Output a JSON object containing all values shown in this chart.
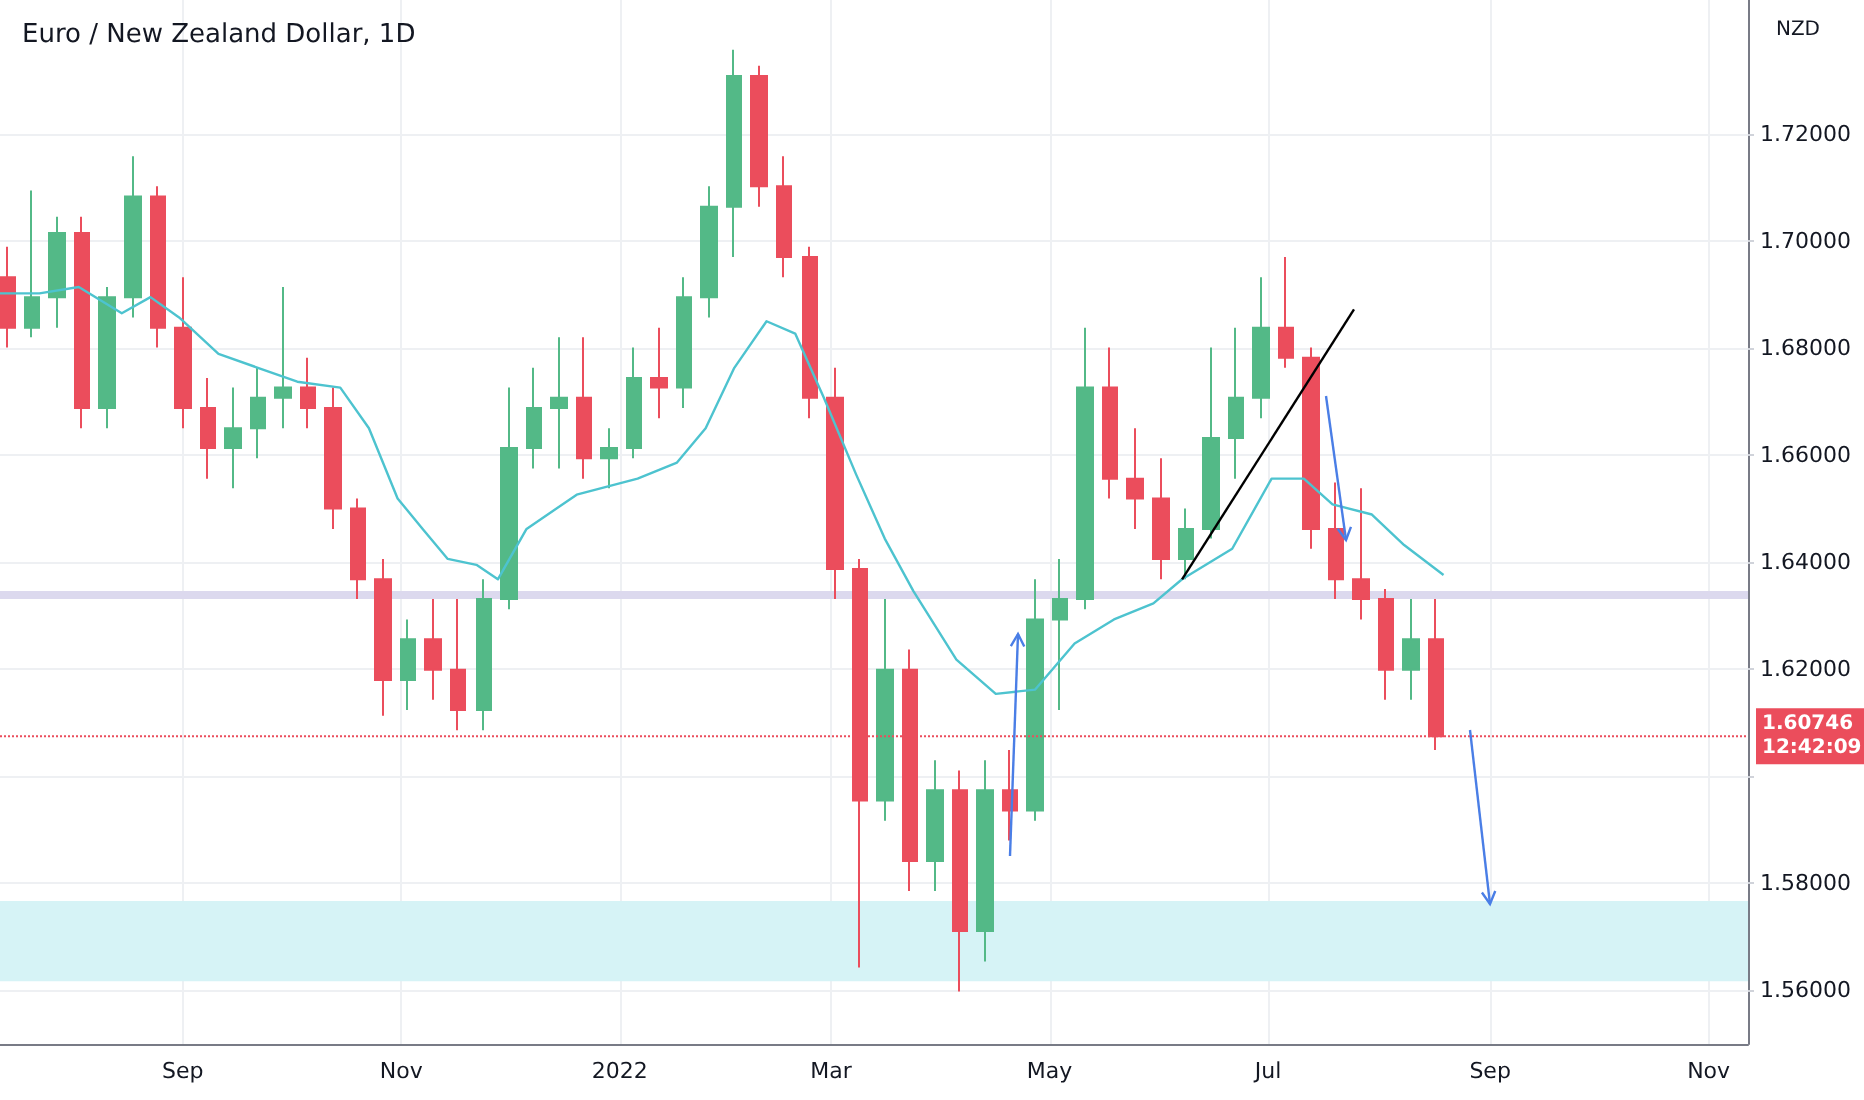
{
  "chart_data": {
    "type": "candlestick",
    "title": "Euro / New Zealand Dollar, 1D",
    "ylabel": "NZD",
    "colors": [
      "#eb4d5c",
      "#53b987",
      "#53b987",
      "#eb4d5c",
      "#53b987",
      "#53b987",
      "#eb4d5c",
      "#eb4d5c",
      "#eb4d5c",
      "#53b987",
      "#53b987",
      "#53b987",
      "#eb4d5c",
      "#eb4d5c",
      "#eb4d5c",
      "#eb4d5c",
      "#53b987",
      "#eb4d5c",
      "#eb4d5c",
      "#53b987",
      "#53b987",
      "#53b987",
      "#53b987",
      "#eb4d5c",
      "#53b987",
      "#53b987",
      "#eb4d5c",
      "#53b987",
      "#53b987",
      "#53b987",
      "#eb4d5c",
      "#eb4d5c",
      "#eb4d5c",
      "#eb4d5c",
      "#eb4d5c",
      "#53b987",
      "#eb4d5c",
      "#53b987",
      "#eb4d5c",
      "#53b987",
      "#eb4d5c",
      "#53b987",
      "#53b987",
      "#53b987",
      "#eb4d5c",
      "#eb4d5c",
      "#eb4d5c",
      "#53b987",
      "#53b987",
      "#53b987",
      "#53b987",
      "#eb4d5c",
      "#eb4d5c",
      "#eb4d5c",
      "#eb4d5c",
      "#eb4d5c",
      "#53b987",
      "#eb4d5c"
    ],
    "x": [
      "2021-07-14",
      "2021-07-21",
      "2021-07-28",
      "2021-08-04",
      "2021-08-11",
      "2021-08-18",
      "2021-08-25",
      "2021-09-01",
      "2021-09-08",
      "2021-09-15",
      "2021-09-22",
      "2021-09-29",
      "2021-10-06",
      "2021-10-13",
      "2021-10-20",
      "2021-10-27",
      "2021-11-03",
      "2021-11-10",
      "2021-11-17",
      "2021-11-24",
      "2021-12-01",
      "2021-12-08",
      "2021-12-15",
      "2021-12-22",
      "2021-12-29",
      "2022-01-05",
      "2022-01-12",
      "2022-01-19",
      "2022-01-26",
      "2022-02-02",
      "2022-02-09",
      "2022-02-16",
      "2022-02-23",
      "2022-03-02",
      "2022-03-09",
      "2022-03-16",
      "2022-03-23",
      "2022-03-30",
      "2022-04-06",
      "2022-04-13",
      "2022-04-20",
      "2022-04-27",
      "2022-05-04",
      "2022-05-11",
      "2022-05-18",
      "2022-05-25",
      "2022-06-01",
      "2022-06-08",
      "2022-06-15",
      "2022-06-22",
      "2022-06-29",
      "2022-07-06",
      "2022-07-13",
      "2022-07-20",
      "2022-07-27",
      "2022-08-03",
      "2022-08-10",
      "2022-08-17"
    ],
    "ohlc": [
      [
        1.6932,
        1.6989,
        1.6801,
        1.6838
      ],
      [
        1.6838,
        1.7094,
        1.682,
        1.6895
      ],
      [
        1.6895,
        1.7045,
        1.6838,
        1.7015
      ],
      [
        1.7015,
        1.7045,
        1.665,
        1.6688
      ],
      [
        1.6688,
        1.6914,
        1.665,
        1.6895
      ],
      [
        1.6895,
        1.7158,
        1.6857,
        1.7083
      ],
      [
        1.7083,
        1.7102,
        1.6801,
        1.6838
      ],
      [
        1.6838,
        1.6932,
        1.665,
        1.6688
      ],
      [
        1.6688,
        1.6744,
        1.6556,
        1.6613
      ],
      [
        1.6613,
        1.6726,
        1.6538,
        1.665
      ],
      [
        1.665,
        1.6763,
        1.6594,
        1.6707
      ],
      [
        1.6707,
        1.6914,
        1.665,
        1.6726
      ],
      [
        1.6726,
        1.6782,
        1.665,
        1.6688
      ],
      [
        1.6688,
        1.6726,
        1.6462,
        1.65
      ],
      [
        1.65,
        1.6519,
        1.6331,
        1.6368
      ],
      [
        1.6368,
        1.6406,
        1.6113,
        1.618
      ],
      [
        1.618,
        1.6293,
        1.6124,
        1.6256
      ],
      [
        1.6256,
        1.6331,
        1.6143,
        1.6199
      ],
      [
        1.6199,
        1.6331,
        1.6086,
        1.6124
      ],
      [
        1.6124,
        1.6368,
        1.6086,
        1.6331
      ],
      [
        1.6331,
        1.6726,
        1.6312,
        1.6613
      ],
      [
        1.6613,
        1.6763,
        1.6575,
        1.6688
      ],
      [
        1.6688,
        1.682,
        1.6575,
        1.6707
      ],
      [
        1.6707,
        1.682,
        1.6556,
        1.6594
      ],
      [
        1.6594,
        1.665,
        1.6538,
        1.6613
      ],
      [
        1.6613,
        1.6801,
        1.6594,
        1.6744
      ],
      [
        1.6744,
        1.6838,
        1.6669,
        1.6726
      ],
      [
        1.6726,
        1.6932,
        1.6688,
        1.6895
      ],
      [
        1.6895,
        1.7102,
        1.6857,
        1.7064
      ],
      [
        1.7064,
        1.7357,
        1.697,
        1.7308
      ],
      [
        1.7308,
        1.7327,
        1.7064,
        1.7102
      ],
      [
        1.7102,
        1.7158,
        1.6932,
        1.697
      ],
      [
        1.697,
        1.6989,
        1.6669,
        1.6707
      ],
      [
        1.6707,
        1.6763,
        1.6331,
        1.6387
      ],
      [
        1.6387,
        1.6406,
        1.5643,
        1.5955
      ],
      [
        1.5955,
        1.6331,
        1.5917,
        1.6199
      ],
      [
        1.6199,
        1.6237,
        1.5786,
        1.5842
      ],
      [
        1.5842,
        1.603,
        1.5786,
        1.5974
      ],
      [
        1.5974,
        1.6011,
        1.5598,
        1.5711
      ],
      [
        1.5711,
        1.603,
        1.5654,
        1.5974
      ],
      [
        1.5974,
        1.6049,
        1.588,
        1.5936
      ],
      [
        1.5936,
        1.6368,
        1.5917,
        1.6293
      ],
      [
        1.6293,
        1.6406,
        1.6124,
        1.6331
      ],
      [
        1.6331,
        1.6838,
        1.6312,
        1.6726
      ],
      [
        1.6726,
        1.6801,
        1.6519,
        1.6556
      ],
      [
        1.6556,
        1.665,
        1.6462,
        1.6519
      ],
      [
        1.6519,
        1.6594,
        1.6368,
        1.6406
      ],
      [
        1.6406,
        1.65,
        1.6368,
        1.6462
      ],
      [
        1.6462,
        1.6801,
        1.6444,
        1.6632
      ],
      [
        1.6632,
        1.6838,
        1.6556,
        1.6707
      ],
      [
        1.6707,
        1.6932,
        1.6669,
        1.6838
      ],
      [
        1.6838,
        1.697,
        1.6763,
        1.6782
      ],
      [
        1.6782,
        1.6801,
        1.6425,
        1.6462
      ],
      [
        1.6462,
        1.6549,
        1.6331,
        1.6368
      ],
      [
        1.6368,
        1.6538,
        1.6293,
        1.6331
      ],
      [
        1.6331,
        1.635,
        1.6143,
        1.6199
      ],
      [
        1.6199,
        1.6331,
        1.6143,
        1.6256
      ],
      [
        1.6256,
        1.6331,
        1.6049,
        1.6075
      ]
    ],
    "series": [
      {
        "type": "line",
        "color": "#4dc3cf",
        "x": [
          "2021-07-12",
          "2021-07-23",
          "2021-08-03",
          "2021-08-15",
          "2021-08-23",
          "2021-08-31",
          "2021-09-11",
          "2021-09-22",
          "2021-10-03",
          "2021-10-15",
          "2021-10-23",
          "2021-10-31",
          "2021-11-07",
          "2021-11-14",
          "2021-11-22",
          "2021-11-28",
          "2021-12-06",
          "2021-12-20",
          "2022-01-06",
          "2022-01-17",
          "2022-01-25",
          "2022-02-02",
          "2022-02-11",
          "2022-02-19",
          "2022-02-27",
          "2022-03-08",
          "2022-03-16",
          "2022-03-24",
          "2022-04-05",
          "2022-04-16",
          "2022-04-27",
          "2022-05-08",
          "2022-05-19",
          "2022-05-30",
          "2022-06-07",
          "2022-06-21",
          "2022-07-02",
          "2022-07-11",
          "2022-07-19",
          "2022-07-30",
          "2022-08-08",
          "2022-08-19"
        ],
        "values": [
          1.6902,
          1.6902,
          1.6914,
          1.6865,
          1.6895,
          1.6857,
          1.6789,
          1.6763,
          1.6737,
          1.6726,
          1.665,
          1.6519,
          1.6462,
          1.6406,
          1.6395,
          1.6368,
          1.6462,
          1.6526,
          1.6556,
          1.6586,
          1.665,
          1.6763,
          1.685,
          1.6827,
          1.6707,
          1.6564,
          1.6444,
          1.6346,
          1.6218,
          1.6154,
          1.6162,
          1.6248,
          1.6293,
          1.6323,
          1.6368,
          1.6425,
          1.6556,
          1.6556,
          1.6508,
          1.6489,
          1.6432,
          1.6376
        ]
      },
      {
        "type": "line",
        "color": "#000000",
        "x": [
          "2022-06-07",
          "2022-07-25"
        ],
        "values": [
          1.6368,
          1.6872
        ]
      }
    ],
    "ref_lines": [
      {
        "axis": "y",
        "value": 1.60746,
        "label": "1.60746",
        "color": "#eb4d5c",
        "line_style": "dotted"
      }
    ],
    "bands": [
      {
        "axis": "y",
        "from": 1.5617,
        "to": 1.5767,
        "color": "#d6f3f6"
      },
      {
        "axis": "y",
        "from": 1.6331,
        "to": 1.6346,
        "color": "#dcd9ee"
      }
    ],
    "annotations": [
      "12:42:09"
    ],
    "xlim": [
      "2021-07-12",
      "2022-11-12"
    ],
    "xticks": [
      {
        "value": "2021-09-01",
        "label": "Sep"
      },
      {
        "value": "2021-11-01",
        "label": "Nov"
      },
      {
        "value": "2022-01-01",
        "label": "2022"
      },
      {
        "value": "2022-03-01",
        "label": "Mar"
      },
      {
        "value": "2022-05-01",
        "label": "May"
      },
      {
        "value": "2022-07-01",
        "label": "Jul"
      },
      {
        "value": "2022-09-01",
        "label": "Sep"
      },
      {
        "value": "2022-11-01",
        "label": "Nov"
      }
    ],
    "ylim": [
      1.55,
      1.745
    ],
    "yticks": [
      {
        "value": 1.56,
        "label": "1.56000"
      },
      {
        "value": 1.58,
        "label": "1.58000"
      },
      {
        "value": 1.6,
        "label": null
      },
      {
        "value": 1.62,
        "label": "1.62000"
      },
      {
        "value": 1.64,
        "label": "1.64000"
      },
      {
        "value": 1.66,
        "label": "1.66000"
      },
      {
        "value": 1.68,
        "label": "1.68000"
      },
      {
        "value": 1.7,
        "label": "1.70000"
      },
      {
        "value": 1.72,
        "label": "1.72000"
      }
    ],
    "grid": true
  }
}
